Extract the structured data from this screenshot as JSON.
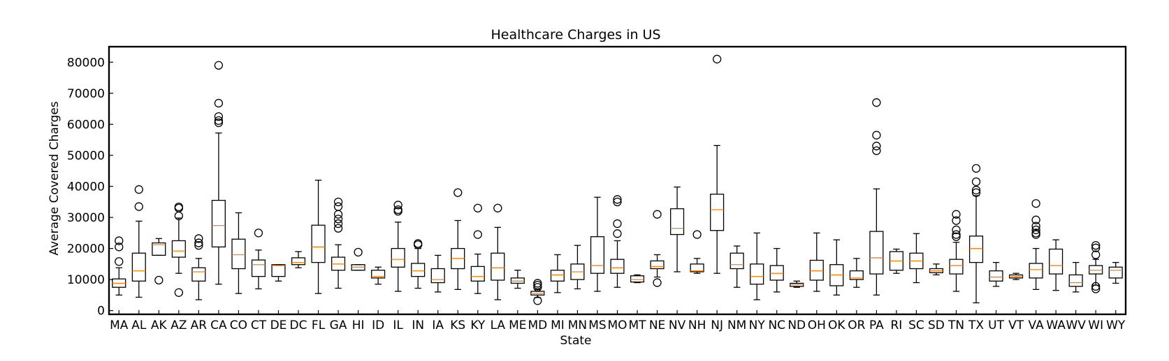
{
  "chart_data": {
    "type": "box",
    "title": "Healthcare Charges in US",
    "xlabel": "State",
    "ylabel": "Average Covered Charges",
    "ylim": [
      -1200,
      85000
    ],
    "yticks": [
      0,
      10000,
      20000,
      30000,
      40000,
      50000,
      60000,
      70000,
      80000
    ],
    "grid": false,
    "colors": {
      "box": "#000000",
      "median": "#ff7f0e",
      "outlier": "#000000"
    },
    "categories": [
      "MA",
      "AL",
      "AK",
      "AZ",
      "AR",
      "CA",
      "CO",
      "CT",
      "DE",
      "DC",
      "FL",
      "GA",
      "HI",
      "ID",
      "IL",
      "IN",
      "IA",
      "KS",
      "KY",
      "LA",
      "ME",
      "MD",
      "MI",
      "MN",
      "MS",
      "MO",
      "MT",
      "NE",
      "NV",
      "NH",
      "NJ",
      "NM",
      "NY",
      "NC",
      "ND",
      "OH",
      "OK",
      "OR",
      "PA",
      "RI",
      "SC",
      "SD",
      "TN",
      "TX",
      "UT",
      "VT",
      "VA",
      "WA",
      "WV",
      "WI",
      "WY"
    ],
    "boxes": [
      {
        "label": "MA",
        "whislo": 5000,
        "q1": 7500,
        "med": 8800,
        "q3": 10200,
        "whishi": 13800,
        "fliers": [
          15800,
          20500,
          22500
        ]
      },
      {
        "label": "AL",
        "whislo": 4300,
        "q1": 9500,
        "med": 12800,
        "q3": 18500,
        "whishi": 28800,
        "fliers": [
          33500,
          39000
        ]
      },
      {
        "label": "AK",
        "whislo": 17800,
        "q1": 17800,
        "med": 21200,
        "q3": 21800,
        "whishi": 23200,
        "fliers": [
          9800
        ]
      },
      {
        "label": "AZ",
        "whislo": 12000,
        "q1": 17200,
        "med": 19200,
        "q3": 22500,
        "whishi": 29800,
        "fliers": [
          5800,
          30500,
          33000,
          33400
        ]
      },
      {
        "label": "AR",
        "whislo": 3500,
        "q1": 9500,
        "med": 12500,
        "q3": 13800,
        "whishi": 16800,
        "fliers": [
          21000,
          21800,
          23200
        ]
      },
      {
        "label": "CA",
        "whislo": 8500,
        "q1": 20500,
        "med": 27400,
        "q3": 35500,
        "whishi": 57200,
        "fliers": [
          60500,
          61200,
          62500,
          66800,
          79000
        ]
      },
      {
        "label": "CO",
        "whislo": 5500,
        "q1": 13500,
        "med": 18000,
        "q3": 23000,
        "whishi": 31500,
        "fliers": []
      },
      {
        "label": "CT",
        "whislo": 7000,
        "q1": 11000,
        "med": 14800,
        "q3": 16300,
        "whishi": 19500,
        "fliers": [
          25000
        ]
      },
      {
        "label": "DE",
        "whislo": 9500,
        "q1": 11000,
        "med": 14500,
        "q3": 14800,
        "whishi": 14800,
        "fliers": []
      },
      {
        "label": "DC",
        "whislo": 13800,
        "q1": 14800,
        "med": 15500,
        "q3": 17000,
        "whishi": 19000,
        "fliers": []
      },
      {
        "label": "FL",
        "whislo": 5500,
        "q1": 15500,
        "med": 20500,
        "q3": 27500,
        "whishi": 42000,
        "fliers": []
      },
      {
        "label": "GA",
        "whislo": 7200,
        "q1": 13000,
        "med": 15000,
        "q3": 17200,
        "whishi": 21200,
        "fliers": [
          26500,
          28000,
          29500,
          31000,
          33500,
          35000
        ]
      },
      {
        "label": "HI",
        "whislo": 13000,
        "q1": 13000,
        "med": 14000,
        "q3": 14800,
        "whishi": 14800,
        "fliers": [
          18800
        ]
      },
      {
        "label": "ID",
        "whislo": 8500,
        "q1": 10500,
        "med": 11000,
        "q3": 13000,
        "whishi": 14000,
        "fliers": []
      },
      {
        "label": "IL",
        "whislo": 6200,
        "q1": 14000,
        "med": 16500,
        "q3": 20000,
        "whishi": 28500,
        "fliers": [
          32000,
          32500,
          34000
        ]
      },
      {
        "label": "IN",
        "whislo": 7200,
        "q1": 11000,
        "med": 12800,
        "q3": 15200,
        "whishi": 20000,
        "fliers": [
          21200,
          21600
        ]
      },
      {
        "label": "IA",
        "whislo": 6000,
        "q1": 9000,
        "med": 10000,
        "q3": 13500,
        "whishi": 17800,
        "fliers": []
      },
      {
        "label": "KS",
        "whislo": 6800,
        "q1": 13500,
        "med": 16800,
        "q3": 20000,
        "whishi": 29000,
        "fliers": [
          38000
        ]
      },
      {
        "label": "KY",
        "whislo": 5500,
        "q1": 9500,
        "med": 11000,
        "q3": 14200,
        "whishi": 18200,
        "fliers": [
          24500,
          33000
        ]
      },
      {
        "label": "LA",
        "whislo": 3500,
        "q1": 9800,
        "med": 13800,
        "q3": 18500,
        "whishi": 26800,
        "fliers": [
          33000
        ]
      },
      {
        "label": "ME",
        "whislo": 7200,
        "q1": 8800,
        "med": 9500,
        "q3": 10500,
        "whishi": 13000,
        "fliers": []
      },
      {
        "label": "MD",
        "whislo": 4200,
        "q1": 5000,
        "med": 5500,
        "q3": 6200,
        "whishi": 6800,
        "fliers": [
          3200,
          7500,
          8200,
          8800
        ]
      },
      {
        "label": "MI",
        "whislo": 5800,
        "q1": 9500,
        "med": 11500,
        "q3": 13000,
        "whishi": 18000,
        "fliers": []
      },
      {
        "label": "MN",
        "whislo": 7000,
        "q1": 10000,
        "med": 12500,
        "q3": 15000,
        "whishi": 21000,
        "fliers": []
      },
      {
        "label": "MS",
        "whislo": 6200,
        "q1": 12000,
        "med": 14500,
        "q3": 23800,
        "whishi": 36500,
        "fliers": []
      },
      {
        "label": "MO",
        "whislo": 7500,
        "q1": 12000,
        "med": 13800,
        "q3": 16500,
        "whishi": 22500,
        "fliers": [
          24800,
          28000,
          35000,
          35800
        ]
      },
      {
        "label": "MT",
        "whislo": 9000,
        "q1": 9200,
        "med": 10000,
        "q3": 11200,
        "whishi": 11500,
        "fliers": []
      },
      {
        "label": "NE",
        "whislo": 10800,
        "q1": 13500,
        "med": 14200,
        "q3": 16000,
        "whishi": 18000,
        "fliers": [
          9000,
          31000
        ]
      },
      {
        "label": "NV",
        "whislo": 12500,
        "q1": 24500,
        "med": 26500,
        "q3": 32800,
        "whishi": 39800,
        "fliers": []
      },
      {
        "label": "NH",
        "whislo": 12000,
        "q1": 12500,
        "med": 12800,
        "q3": 15000,
        "whishi": 16800,
        "fliers": [
          24500
        ]
      },
      {
        "label": "NJ",
        "whislo": 12000,
        "q1": 25800,
        "med": 32500,
        "q3": 37500,
        "whishi": 53200,
        "fliers": [
          81000
        ]
      },
      {
        "label": "NM",
        "whislo": 7500,
        "q1": 13500,
        "med": 14800,
        "q3": 18500,
        "whishi": 20800,
        "fliers": []
      },
      {
        "label": "NY",
        "whislo": 3500,
        "q1": 8500,
        "med": 11000,
        "q3": 15000,
        "whishi": 25000,
        "fliers": []
      },
      {
        "label": "NC",
        "whislo": 6000,
        "q1": 9800,
        "med": 12000,
        "q3": 14500,
        "whishi": 20000,
        "fliers": []
      },
      {
        "label": "ND",
        "whislo": 7500,
        "q1": 7800,
        "med": 8500,
        "q3": 8800,
        "whishi": 9500,
        "fliers": []
      },
      {
        "label": "OH",
        "whislo": 6200,
        "q1": 9800,
        "med": 12800,
        "q3": 16200,
        "whishi": 25000,
        "fliers": []
      },
      {
        "label": "OK",
        "whislo": 5000,
        "q1": 8000,
        "med": 11500,
        "q3": 14800,
        "whishi": 22800,
        "fliers": []
      },
      {
        "label": "OR",
        "whislo": 7500,
        "q1": 10000,
        "med": 10500,
        "q3": 12800,
        "whishi": 16800,
        "fliers": []
      },
      {
        "label": "PA",
        "whislo": 5000,
        "q1": 11800,
        "med": 17000,
        "q3": 25500,
        "whishi": 39200,
        "fliers": [
          51500,
          53000,
          56500,
          67000
        ]
      },
      {
        "label": "RI",
        "whislo": 12000,
        "q1": 13000,
        "med": 16000,
        "q3": 19000,
        "whishi": 19800,
        "fliers": []
      },
      {
        "label": "SC",
        "whislo": 9000,
        "q1": 13500,
        "med": 16000,
        "q3": 18500,
        "whishi": 24800,
        "fliers": []
      },
      {
        "label": "SD",
        "whislo": 11500,
        "q1": 12200,
        "med": 12800,
        "q3": 13500,
        "whishi": 15000,
        "fliers": []
      },
      {
        "label": "TN",
        "whislo": 6200,
        "q1": 11800,
        "med": 14500,
        "q3": 16500,
        "whishi": 22000,
        "fliers": [
          23800,
          24500,
          26000,
          29000,
          31000
        ]
      },
      {
        "label": "TX",
        "whislo": 2500,
        "q1": 15500,
        "med": 20000,
        "q3": 24000,
        "whishi": 37000,
        "fliers": [
          38000,
          38800,
          41500,
          45800
        ]
      },
      {
        "label": "UT",
        "whislo": 7800,
        "q1": 9500,
        "med": 10800,
        "q3": 12800,
        "whishi": 15500,
        "fliers": []
      },
      {
        "label": "VT",
        "whislo": 10000,
        "q1": 10500,
        "med": 11000,
        "q3": 11500,
        "whishi": 12000,
        "fliers": []
      },
      {
        "label": "VA",
        "whislo": 6800,
        "q1": 10500,
        "med": 13200,
        "q3": 15200,
        "whishi": 20000,
        "fliers": [
          24500,
          25000,
          26000,
          27200,
          29200,
          34500
        ]
      },
      {
        "label": "WA",
        "whislo": 6500,
        "q1": 11800,
        "med": 14500,
        "q3": 19800,
        "whishi": 22800,
        "fliers": []
      },
      {
        "label": "WV",
        "whislo": 6000,
        "q1": 7800,
        "med": 9000,
        "q3": 11500,
        "whishi": 15500,
        "fliers": []
      },
      {
        "label": "WI",
        "whislo": 8200,
        "q1": 11800,
        "med": 13000,
        "q3": 14500,
        "whishi": 16500,
        "fliers": [
          7000,
          7800,
          18000,
          20200,
          21000
        ]
      },
      {
        "label": "WY",
        "whislo": 8800,
        "q1": 10500,
        "med": 13000,
        "q3": 14000,
        "whishi": 15500,
        "fliers": []
      }
    ]
  }
}
